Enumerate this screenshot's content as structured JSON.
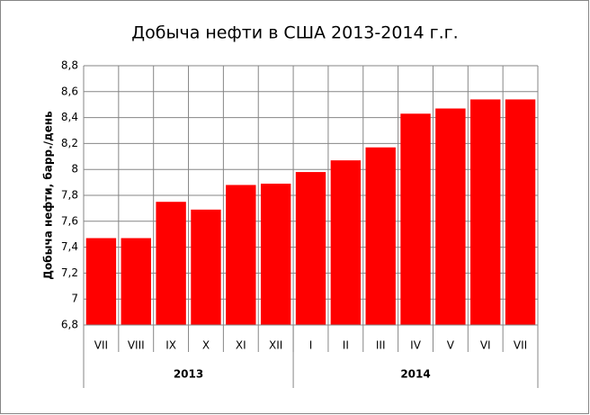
{
  "chart_data": {
    "type": "bar",
    "title": "Добыча нефти в США 2013-2014 г.г.",
    "y_label": "Добыча нефти, барр./день",
    "categories": [
      "VII",
      "VIII",
      "IX",
      "X",
      "XI",
      "XII",
      "I",
      "II",
      "III",
      "IV",
      "V",
      "VI",
      "VII"
    ],
    "groups": [
      {
        "label": "2013",
        "count": 6
      },
      {
        "label": "2014",
        "count": 7
      }
    ],
    "values": [
      7.47,
      7.47,
      7.75,
      7.69,
      7.88,
      7.89,
      7.98,
      8.07,
      8.17,
      8.43,
      8.47,
      8.54,
      8.54
    ],
    "color": "#ff0000",
    "ylim": [
      6.8,
      8.8
    ],
    "yticks": [
      {
        "value": 6.8,
        "label": "6,8"
      },
      7,
      {
        "value": 7.2,
        "label": "7,2"
      },
      {
        "value": 7.4,
        "label": "7,4"
      },
      {
        "value": 7.6,
        "label": "7,6"
      },
      {
        "value": 7.8,
        "label": "7,8"
      },
      8,
      {
        "value": 8.2,
        "label": "8,2"
      },
      {
        "value": 8.4,
        "label": "8,4"
      },
      {
        "value": 8.6,
        "label": "8,6"
      },
      {
        "value": 8.8,
        "label": "8,8"
      }
    ],
    "grid": true
  }
}
